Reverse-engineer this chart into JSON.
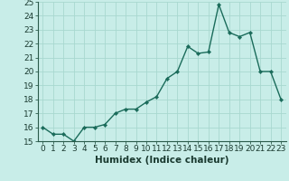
{
  "x": [
    0,
    1,
    2,
    3,
    4,
    5,
    6,
    7,
    8,
    9,
    10,
    11,
    12,
    13,
    14,
    15,
    16,
    17,
    18,
    19,
    20,
    21,
    22,
    23
  ],
  "y": [
    16.0,
    15.5,
    15.5,
    15.0,
    16.0,
    16.0,
    16.2,
    17.0,
    17.3,
    17.3,
    17.8,
    18.2,
    19.5,
    20.0,
    21.8,
    21.3,
    21.4,
    24.8,
    22.8,
    22.5,
    22.8,
    20.0,
    20.0,
    18.0
  ],
  "xlabel": "Humidex (Indice chaleur)",
  "ylim": [
    15,
    25
  ],
  "xlim": [
    -0.5,
    23.5
  ],
  "yticks": [
    15,
    16,
    17,
    18,
    19,
    20,
    21,
    22,
    23,
    24,
    25
  ],
  "xticks": [
    0,
    1,
    2,
    3,
    4,
    5,
    6,
    7,
    8,
    9,
    10,
    11,
    12,
    13,
    14,
    15,
    16,
    17,
    18,
    19,
    20,
    21,
    22,
    23
  ],
  "line_color": "#1a6b5a",
  "marker_color": "#1a6b5a",
  "bg_color": "#c8ede8",
  "grid_color": "#a8d8d0",
  "xlabel_fontsize": 7.5,
  "tick_fontsize": 6.5,
  "line_width": 1.0,
  "marker_size": 2.2
}
